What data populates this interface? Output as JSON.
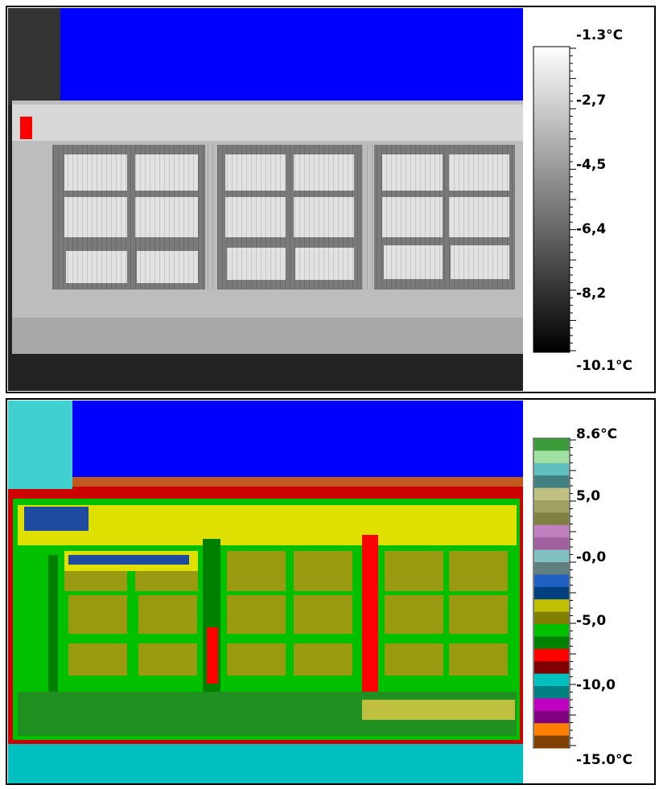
{
  "panels": [
    {
      "scale": {
        "labels": [
          "-1.3°C",
          "-2,7",
          "-4,5",
          "-6,4",
          "-8,2",
          "-10.1°C"
        ]
      }
    },
    {
      "scale": {
        "labels": [
          "8.6°C",
          "5,0",
          "-0,0",
          "-5,0",
          "-10,0",
          "-15.0°C"
        ]
      }
    }
  ]
}
